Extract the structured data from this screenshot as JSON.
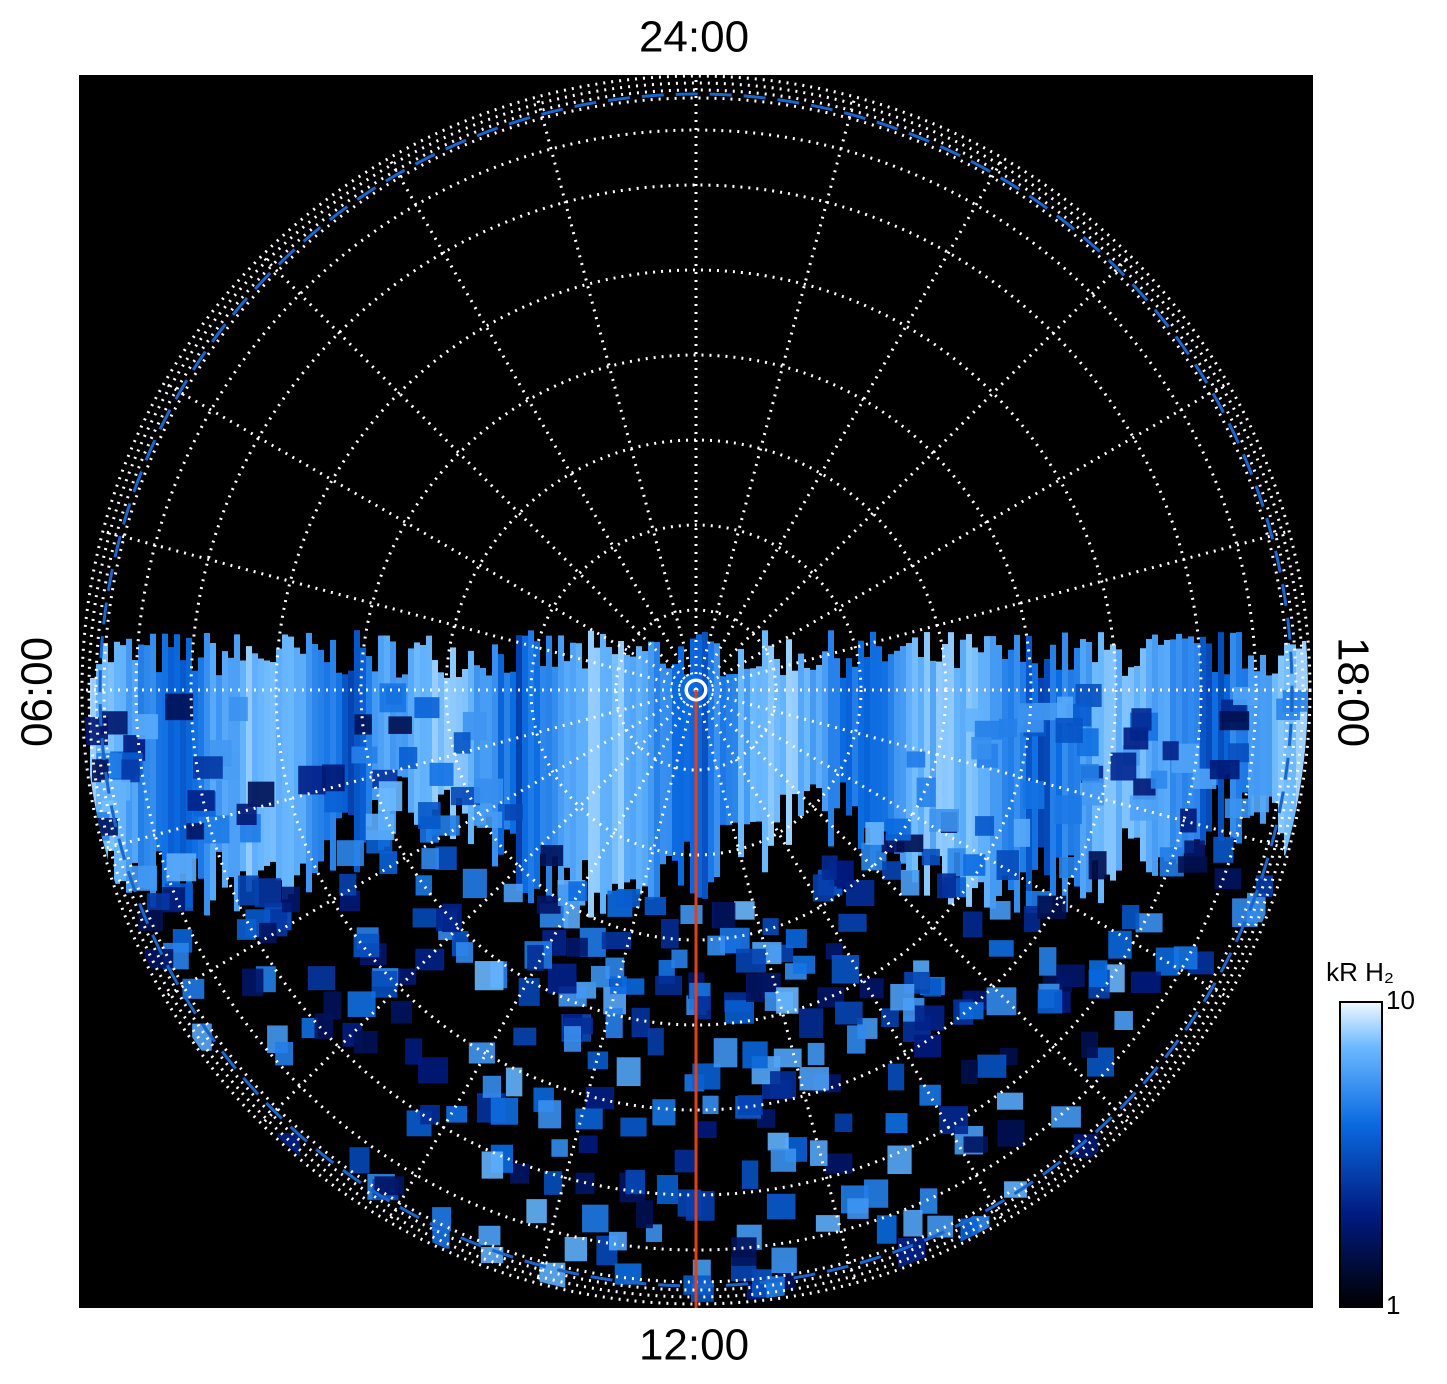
{
  "labels": {
    "top": "24:00",
    "left": "06:00",
    "right": "18:00",
    "bottom": "12:00"
  },
  "colorbar": {
    "title": "kR H₂",
    "range": [
      1,
      10
    ],
    "ticks": [
      10,
      1
    ],
    "log": true
  }
}
